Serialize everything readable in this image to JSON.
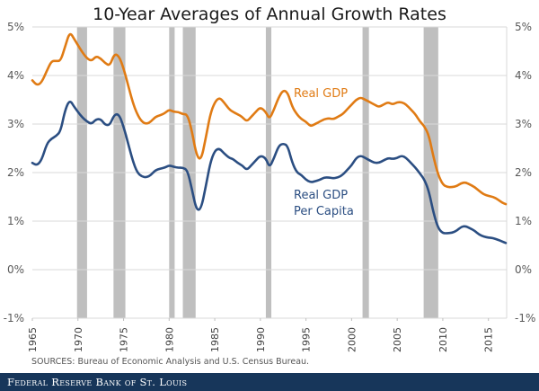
{
  "chart_data": {
    "type": "line",
    "title": "10-Year Averages of Annual Growth Rates",
    "xlabel": "",
    "ylabel": "",
    "xlim": [
      1965,
      2017
    ],
    "ylim": [
      -1,
      5
    ],
    "grid": true,
    "y_ticks": [
      "5%",
      "4%",
      "3%",
      "2%",
      "1%",
      "0%",
      "-1%"
    ],
    "y_tick_values": [
      5,
      4,
      3,
      2,
      1,
      0,
      -1
    ],
    "x_ticks": [
      "1965",
      "1970",
      "1975",
      "1980",
      "1985",
      "1990",
      "1995",
      "2000",
      "2005",
      "2010",
      "2015"
    ],
    "x_tick_values": [
      1965,
      1970,
      1975,
      1980,
      1985,
      1990,
      1995,
      2000,
      2005,
      2010,
      2015
    ],
    "recessions": [
      [
        1969.9,
        1971.0
      ],
      [
        1973.9,
        1975.2
      ],
      [
        1980.0,
        1980.6
      ],
      [
        1981.5,
        1982.9
      ],
      [
        1990.6,
        1991.2
      ],
      [
        2001.2,
        2001.9
      ],
      [
        2007.9,
        2009.5
      ]
    ],
    "series": [
      {
        "name": "Real GDP",
        "color": "#e07b14",
        "x": [
          1965.0,
          1965.5,
          1966.0,
          1966.6,
          1967.1,
          1967.6,
          1968.1,
          1968.6,
          1969.1,
          1969.6,
          1970.4,
          1971.0,
          1971.5,
          1972.0,
          1972.5,
          1973.0,
          1973.5,
          1974.0,
          1974.5,
          1975.0,
          1975.5,
          1976.0,
          1976.5,
          1977.0,
          1977.5,
          1978.0,
          1978.5,
          1979.0,
          1979.5,
          1980.0,
          1980.5,
          1981.0,
          1981.5,
          1982.0,
          1982.5,
          1983.0,
          1983.5,
          1984.0,
          1984.5,
          1985.0,
          1985.5,
          1986.0,
          1986.6,
          1987.0,
          1987.5,
          1988.0,
          1988.5,
          1989.0,
          1989.5,
          1990.0,
          1990.6,
          1991.0,
          1991.5,
          1992.0,
          1992.5,
          1993.0,
          1993.5,
          1994.0,
          1994.5,
          1995.0,
          1995.5,
          1996.0,
          1996.5,
          1997.0,
          1997.5,
          1998.0,
          1998.5,
          1999.0,
          1999.5,
          2000.0,
          2000.5,
          2001.0,
          2001.5,
          2002.0,
          2002.5,
          2003.0,
          2003.5,
          2004.0,
          2004.5,
          2005.0,
          2005.5,
          2006.0,
          2006.5,
          2007.0,
          2007.5,
          2008.0,
          2008.5,
          2009.0,
          2009.5,
          2010.0,
          2010.5,
          2011.0,
          2011.5,
          2012.0,
          2012.5,
          2013.0,
          2013.5,
          2014.0,
          2014.5,
          2015.0,
          2015.5,
          2016.0,
          2016.5,
          2016.9
        ],
        "values": [
          3.9,
          3.8,
          3.85,
          4.1,
          4.3,
          4.3,
          4.3,
          4.6,
          4.9,
          4.75,
          4.5,
          4.35,
          4.3,
          4.4,
          4.35,
          4.25,
          4.2,
          4.45,
          4.4,
          4.15,
          3.8,
          3.45,
          3.2,
          3.05,
          3.0,
          3.05,
          3.15,
          3.18,
          3.22,
          3.3,
          3.25,
          3.25,
          3.2,
          3.2,
          2.85,
          2.35,
          2.25,
          2.7,
          3.2,
          3.45,
          3.55,
          3.45,
          3.3,
          3.25,
          3.2,
          3.15,
          3.05,
          3.15,
          3.25,
          3.35,
          3.25,
          3.1,
          3.3,
          3.55,
          3.7,
          3.65,
          3.35,
          3.2,
          3.1,
          3.05,
          2.95,
          3.0,
          3.05,
          3.1,
          3.12,
          3.1,
          3.15,
          3.2,
          3.3,
          3.4,
          3.5,
          3.55,
          3.5,
          3.45,
          3.4,
          3.35,
          3.4,
          3.45,
          3.4,
          3.45,
          3.45,
          3.4,
          3.3,
          3.2,
          3.05,
          2.95,
          2.75,
          2.3,
          1.95,
          1.75,
          1.7,
          1.7,
          1.72,
          1.78,
          1.8,
          1.75,
          1.7,
          1.62,
          1.55,
          1.52,
          1.5,
          1.45,
          1.38,
          1.35
        ]
      },
      {
        "name": "Real GDP Per Capita",
        "color": "#2b4e82",
        "x": [
          1965.0,
          1965.5,
          1966.0,
          1966.6,
          1967.1,
          1967.6,
          1968.1,
          1968.6,
          1969.1,
          1969.6,
          1970.4,
          1971.0,
          1971.5,
          1972.0,
          1972.5,
          1973.0,
          1973.5,
          1974.0,
          1974.5,
          1975.0,
          1975.5,
          1976.0,
          1976.5,
          1977.0,
          1977.5,
          1978.0,
          1978.5,
          1979.0,
          1979.5,
          1980.0,
          1980.5,
          1981.0,
          1981.5,
          1982.0,
          1982.5,
          1983.0,
          1983.5,
          1984.0,
          1984.5,
          1985.0,
          1985.5,
          1986.0,
          1986.6,
          1987.0,
          1987.5,
          1988.0,
          1988.5,
          1989.0,
          1989.5,
          1990.0,
          1990.6,
          1991.0,
          1991.5,
          1992.0,
          1992.5,
          1993.0,
          1993.5,
          1994.0,
          1994.5,
          1995.0,
          1995.5,
          1996.0,
          1996.5,
          1997.0,
          1997.5,
          1998.0,
          1998.5,
          1999.0,
          1999.5,
          2000.0,
          2000.5,
          2001.0,
          2001.5,
          2002.0,
          2002.5,
          2003.0,
          2003.5,
          2004.0,
          2004.5,
          2005.0,
          2005.5,
          2006.0,
          2006.5,
          2007.0,
          2007.5,
          2008.0,
          2008.5,
          2009.0,
          2009.5,
          2010.0,
          2010.5,
          2011.0,
          2011.5,
          2012.0,
          2012.5,
          2013.0,
          2013.5,
          2014.0,
          2014.5,
          2015.0,
          2015.5,
          2016.0,
          2016.5,
          2016.9
        ],
        "values": [
          2.2,
          2.15,
          2.25,
          2.6,
          2.7,
          2.75,
          2.85,
          3.3,
          3.5,
          3.35,
          3.15,
          3.05,
          3.0,
          3.1,
          3.1,
          2.98,
          2.98,
          3.2,
          3.2,
          2.95,
          2.6,
          2.25,
          2.0,
          1.92,
          1.9,
          1.95,
          2.05,
          2.08,
          2.1,
          2.15,
          2.12,
          2.1,
          2.1,
          2.05,
          1.65,
          1.22,
          1.25,
          1.7,
          2.2,
          2.45,
          2.5,
          2.4,
          2.3,
          2.28,
          2.2,
          2.15,
          2.05,
          2.15,
          2.25,
          2.35,
          2.3,
          2.1,
          2.3,
          2.55,
          2.6,
          2.55,
          2.2,
          2.0,
          1.95,
          1.85,
          1.8,
          1.82,
          1.85,
          1.9,
          1.9,
          1.88,
          1.9,
          1.95,
          2.05,
          2.15,
          2.3,
          2.35,
          2.3,
          2.25,
          2.2,
          2.2,
          2.25,
          2.3,
          2.28,
          2.3,
          2.35,
          2.3,
          2.2,
          2.1,
          1.98,
          1.85,
          1.6,
          1.15,
          0.85,
          0.75,
          0.75,
          0.76,
          0.8,
          0.88,
          0.9,
          0.85,
          0.8,
          0.72,
          0.68,
          0.66,
          0.65,
          0.62,
          0.58,
          0.55
        ]
      }
    ],
    "annotations": [
      {
        "text": "Real GDP",
        "series": "Real GDP"
      },
      {
        "text": "Real GDP",
        "series": "Real GDP Per Capita"
      },
      {
        "text": "Per Capita",
        "series": "Real GDP Per Capita"
      }
    ],
    "source": "SOURCES: Bureau of Economic Analysis and U.S. Census Bureau."
  },
  "footer": {
    "publisher": "Federal Reserve Bank of St. Louis"
  },
  "colors": {
    "recession": "#bfbfbf",
    "grid": "#d9d9d9",
    "footer_bg": "#17365a"
  }
}
